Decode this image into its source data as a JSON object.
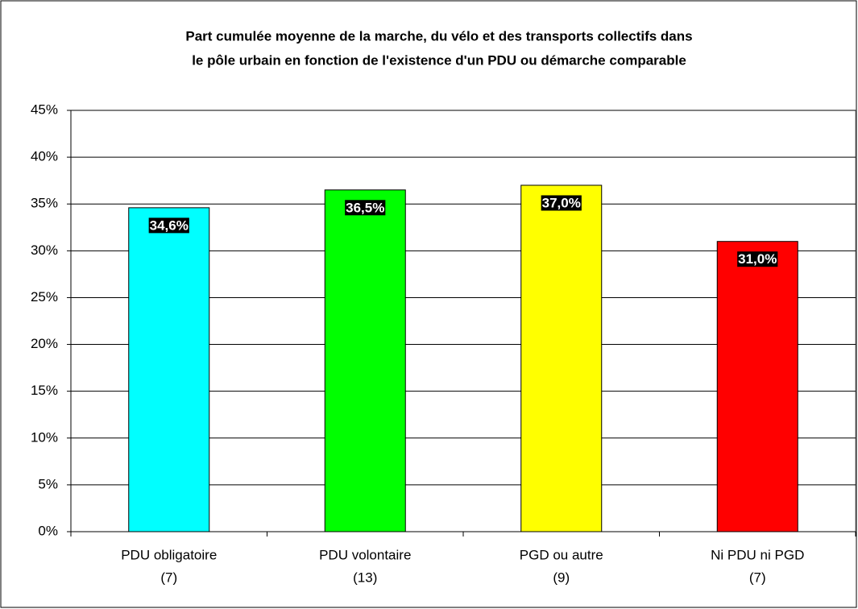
{
  "chart_data": {
    "type": "bar",
    "title": [
      "Part cumulée moyenne de la marche, du vélo et des transports collectifs dans",
      "le pôle urbain en fonction de l'existence d'un PDU ou démarche comparable"
    ],
    "categories": [
      [
        "PDU obligatoire",
        "(7)"
      ],
      [
        "PDU volontaire",
        "(13)"
      ],
      [
        "PGD ou autre",
        "(9)"
      ],
      [
        "Ni PDU ni PGD",
        "(7)"
      ]
    ],
    "values": [
      34.6,
      36.5,
      37.0,
      31.0
    ],
    "value_labels": [
      "34,6%",
      "36,5%",
      "37,0%",
      "31,0%"
    ],
    "colors": [
      "#00ffff",
      "#00ff00",
      "#ffff00",
      "#ff0000"
    ],
    "ylim": [
      0,
      45
    ],
    "yticks": [
      {
        "value": 0,
        "label": "0%"
      },
      {
        "value": 5,
        "label": "5%"
      },
      {
        "value": 10,
        "label": "10%"
      },
      {
        "value": 15,
        "label": "15%"
      },
      {
        "value": 20,
        "label": "20%"
      },
      {
        "value": 25,
        "label": "25%"
      },
      {
        "value": 30,
        "label": "30%"
      },
      {
        "value": 35,
        "label": "35%"
      },
      {
        "value": 40,
        "label": "40%"
      },
      {
        "value": 45,
        "label": "45%"
      }
    ],
    "grid": true
  }
}
